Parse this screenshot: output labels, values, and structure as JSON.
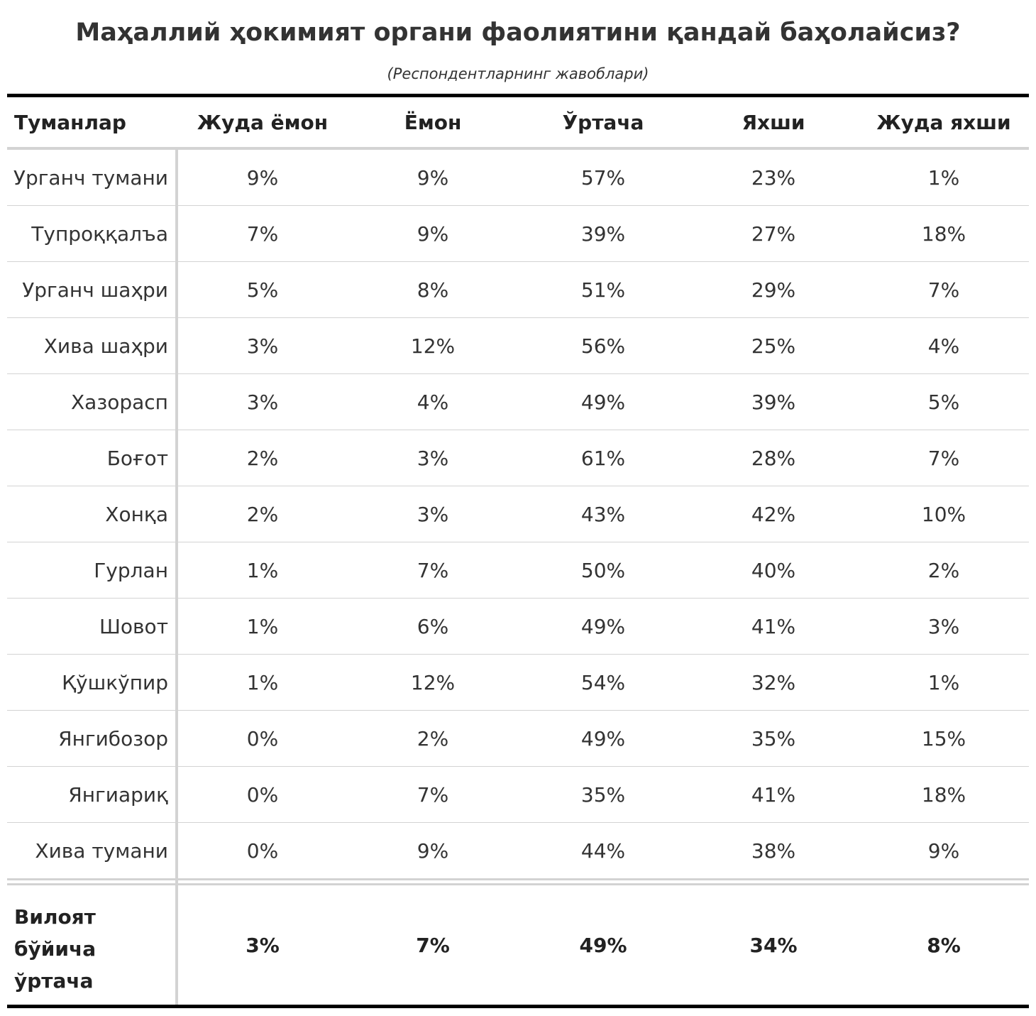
{
  "title": "Маҳаллий ҳокимият органи фаолиятини қандай баҳолайсиз?",
  "subtitle": "(Респондентларнинг жавоблари)",
  "table": {
    "headers": [
      "Туманлар",
      "Жуда ёмон",
      "Ёмон",
      "Ўртача",
      "Яхши",
      "Жуда яхши"
    ],
    "rows": [
      {
        "name": "Урганч тумани",
        "values": [
          "9%",
          "9%",
          "57%",
          "23%",
          "1%"
        ]
      },
      {
        "name": "Тупроққалъа",
        "values": [
          "7%",
          "9%",
          "39%",
          "27%",
          "18%"
        ]
      },
      {
        "name": "Урганч шаҳри",
        "values": [
          "5%",
          "8%",
          "51%",
          "29%",
          "7%"
        ]
      },
      {
        "name": "Хива шаҳри",
        "values": [
          "3%",
          "12%",
          "56%",
          "25%",
          "4%"
        ]
      },
      {
        "name": "Хазорасп",
        "values": [
          "3%",
          "4%",
          "49%",
          "39%",
          "5%"
        ]
      },
      {
        "name": "Боғот",
        "values": [
          "2%",
          "3%",
          "61%",
          "28%",
          "7%"
        ]
      },
      {
        "name": "Хонқа",
        "values": [
          "2%",
          "3%",
          "43%",
          "42%",
          "10%"
        ]
      },
      {
        "name": "Гурлан",
        "values": [
          "1%",
          "7%",
          "50%",
          "40%",
          "2%"
        ]
      },
      {
        "name": "Шовот",
        "values": [
          "1%",
          "6%",
          "49%",
          "41%",
          "3%"
        ]
      },
      {
        "name": "Қўшкўпир",
        "values": [
          "1%",
          "12%",
          "54%",
          "32%",
          "1%"
        ]
      },
      {
        "name": "Янгибозор",
        "values": [
          "0%",
          "2%",
          "49%",
          "35%",
          "15%"
        ]
      },
      {
        "name": "Янгиариқ",
        "values": [
          "0%",
          "7%",
          "35%",
          "41%",
          "18%"
        ]
      },
      {
        "name": "Хива тумани",
        "values": [
          "0%",
          "9%",
          "44%",
          "38%",
          "9%"
        ]
      }
    ],
    "total": {
      "name_lines": [
        "Вилоят",
        "бўйича",
        "ўртача"
      ],
      "values": [
        "3%",
        "7%",
        "49%",
        "34%",
        "8%"
      ]
    }
  }
}
